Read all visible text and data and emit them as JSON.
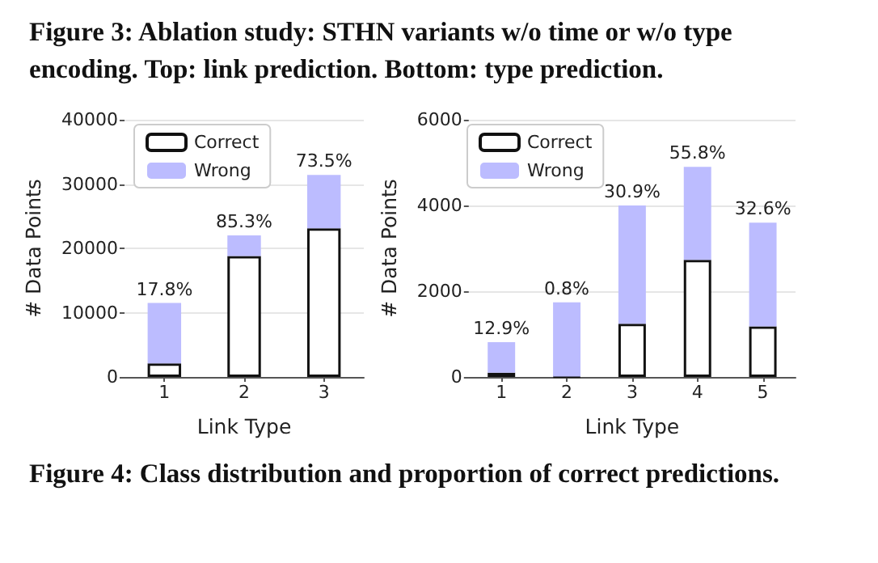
{
  "chart_data": [
    {
      "type": "bar",
      "stacked": true,
      "categories": [
        "1",
        "2",
        "3"
      ],
      "series": [
        {
          "name": "Correct",
          "color": "#ffffff",
          "values": [
            2100,
            18800,
            23100
          ]
        },
        {
          "name": "Wrong",
          "color": "#bcbcff",
          "values": [
            9400,
            3200,
            8300
          ]
        }
      ],
      "xlabel": "Link Type",
      "ylabel": "# Data Points",
      "ylim": [
        0,
        40000
      ],
      "yticks": [
        0,
        10000,
        20000,
        30000,
        40000
      ],
      "grid": "y",
      "legend": "top left",
      "annotations": [
        "Figure 3: Ablation study: STHN variants w/o time or w/o type encoding. Top: link prediction. Bottom: type prediction.",
        {
          "text": "17.8%",
          "x": "1",
          "y": 11500
        },
        {
          "text": "85.3%",
          "x": "2",
          "y": 22000
        },
        {
          "text": "73.5%",
          "x": "3",
          "y": 31400
        }
      ]
    },
    {
      "type": "bar",
      "stacked": true,
      "categories": [
        "1",
        "2",
        "3",
        "4",
        "5"
      ],
      "series": [
        {
          "name": "Correct",
          "color": "#ffffff",
          "values": [
            100,
            10,
            1240,
            2730,
            1180
          ]
        },
        {
          "name": "Wrong",
          "color": "#bcbcff",
          "values": [
            710,
            1730,
            2760,
            2170,
            2420
          ]
        }
      ],
      "xlabel": "Link Type",
      "ylabel": "# Data Points",
      "ylim": [
        0,
        6000
      ],
      "yticks": [
        0,
        2000,
        4000,
        6000
      ],
      "grid": "y",
      "legend": "top left",
      "annotations": [
        "Figure 4: Class distribution and proportion of correct predictions.",
        {
          "text": "12.9%",
          "x": "1",
          "y": 810
        },
        {
          "text": "0.8%",
          "x": "2",
          "y": 1740
        },
        {
          "text": "30.9%",
          "x": "3",
          "y": 4000
        },
        {
          "text": "55.8%",
          "x": "4",
          "y": 4900
        },
        {
          "text": "32.6%",
          "x": "5",
          "y": 3600
        }
      ]
    }
  ]
}
